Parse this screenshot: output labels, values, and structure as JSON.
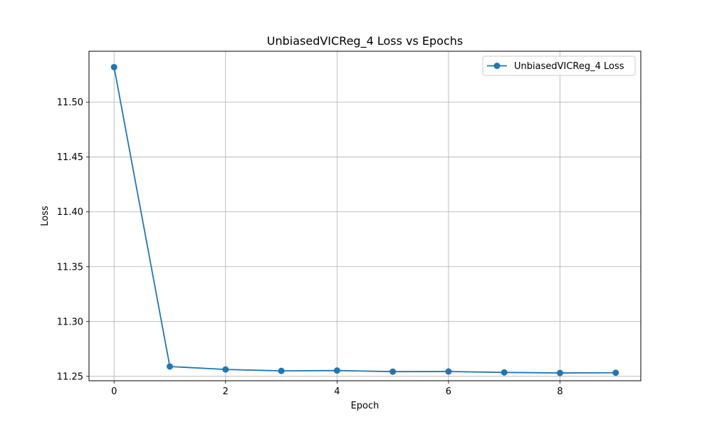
{
  "chart_data": {
    "type": "line",
    "title": "UnbiasedVICReg_4 Loss vs Epochs",
    "xlabel": "Epoch",
    "ylabel": "Loss",
    "xlim": [
      -0.45,
      9.45
    ],
    "ylim": [
      11.246,
      11.5465
    ],
    "xticks": [
      0,
      2,
      4,
      6,
      8
    ],
    "yticks": [
      11.25,
      11.3,
      11.35,
      11.4,
      11.45,
      11.5
    ],
    "ytick_labels": [
      "11.25",
      "11.30",
      "11.35",
      "11.40",
      "11.45",
      "11.50"
    ],
    "xtick_labels": [
      "0",
      "2",
      "4",
      "6",
      "8"
    ],
    "grid": true,
    "legend_position": "top-right",
    "series": [
      {
        "name": "UnbiasedVICReg_4 Loss",
        "color": "#1f77b4",
        "marker": "circle",
        "x": [
          0,
          1,
          2,
          3,
          4,
          5,
          6,
          7,
          8,
          9
        ],
        "values": [
          11.532,
          11.259,
          11.2563,
          11.255,
          11.2553,
          11.2543,
          11.2544,
          11.2536,
          11.2531,
          11.2533
        ]
      }
    ]
  }
}
